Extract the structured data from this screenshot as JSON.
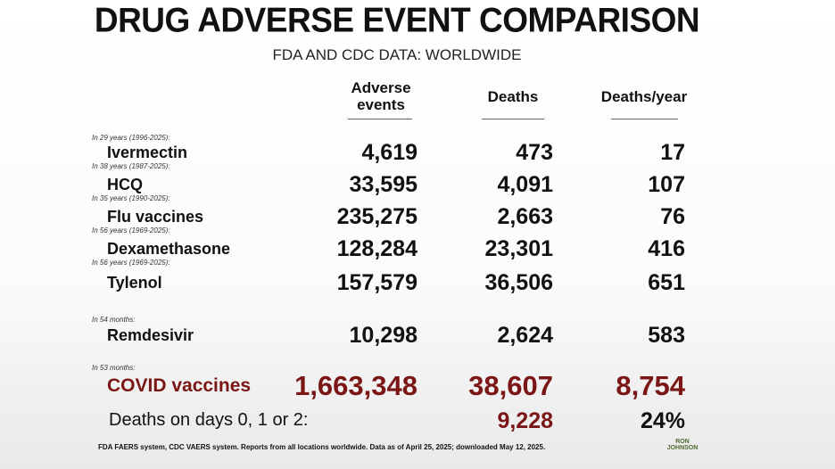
{
  "header": {
    "title": "DRUG ADVERSE EVENT COMPARISON",
    "subtitle": "FDA AND CDC DATA: WORLDWIDE"
  },
  "table": {
    "columns": [
      "Adverse events",
      "Deaths",
      "Deaths/year"
    ],
    "rows": [
      {
        "note": "In 29 years (1996-2025):",
        "name": "Ivermectin",
        "values": [
          "4,619",
          "473",
          "17"
        ]
      },
      {
        "note": "In 38 years (1987-2025):",
        "name": "HCQ",
        "values": [
          "33,595",
          "4,091",
          "107"
        ]
      },
      {
        "note": "In 35 years (1990-2025):",
        "name": "Flu vaccines",
        "values": [
          "235,275",
          "2,663",
          "76"
        ]
      },
      {
        "note": "In 56 years (1969-2025):",
        "name": "Dexamethasone",
        "values": [
          "128,284",
          "23,301",
          "416"
        ]
      },
      {
        "note": "In 56 years (1969-2025):",
        "name": "Tylenol",
        "values": [
          "157,579",
          "36,506",
          "651"
        ]
      },
      {
        "note": "In 54 months:",
        "name": "Remdesivir",
        "values": [
          "10,298",
          "2,624",
          "583"
        ]
      },
      {
        "note": "In 53 months:",
        "name": "COVID vaccines",
        "values": [
          "1,663,348",
          "38,607",
          "8,754"
        ]
      }
    ],
    "extra": {
      "label": "Deaths on days 0, 1 or 2:",
      "deaths": "9,228",
      "share": "24%"
    }
  },
  "footer": {
    "source": "FDA FAERS system, CDC VAERS system. Reports from all locations worldwide. Data as of April 25, 2025; downloaded May 12, 2025.",
    "logo": "RON JOHNSON"
  }
}
